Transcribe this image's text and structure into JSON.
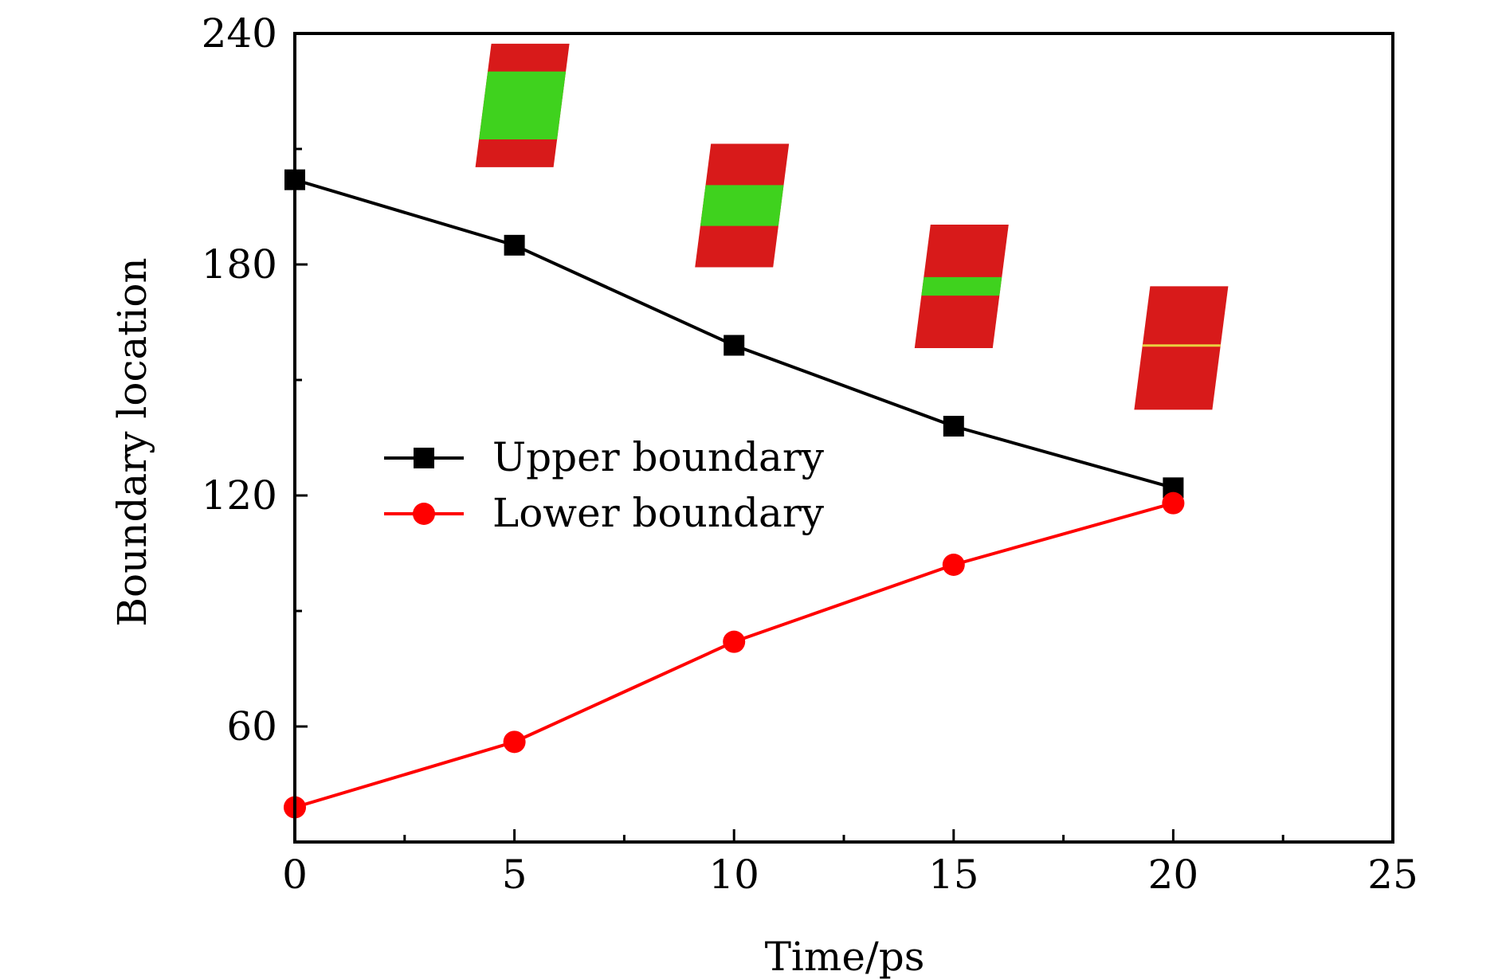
{
  "chart_data": {
    "type": "line",
    "title": "",
    "xlabel": "Time/ps",
    "ylabel": "Boundary location",
    "xlim": [
      0,
      25
    ],
    "ylim": [
      30,
      240
    ],
    "xticks": [
      0,
      5,
      10,
      15,
      20,
      25
    ],
    "yticks": [
      60,
      120,
      180,
      240
    ],
    "grid": false,
    "legend_position": "center-left",
    "x": [
      0,
      5,
      10,
      15,
      20
    ],
    "series": [
      {
        "name": "Upper boundary",
        "marker": "square",
        "color": "#000000",
        "values": [
          202,
          185,
          159,
          138,
          122
        ]
      },
      {
        "name": "Lower boundary",
        "marker": "circle",
        "color": "#ff0000",
        "values": [
          39,
          56,
          82,
          102,
          118
        ]
      }
    ],
    "insets": [
      {
        "time": 5,
        "green_fraction": 0.55
      },
      {
        "time": 10,
        "green_fraction": 0.33
      },
      {
        "time": 15,
        "green_fraction": 0.15
      },
      {
        "time": 20,
        "green_fraction": 0.0
      }
    ]
  }
}
